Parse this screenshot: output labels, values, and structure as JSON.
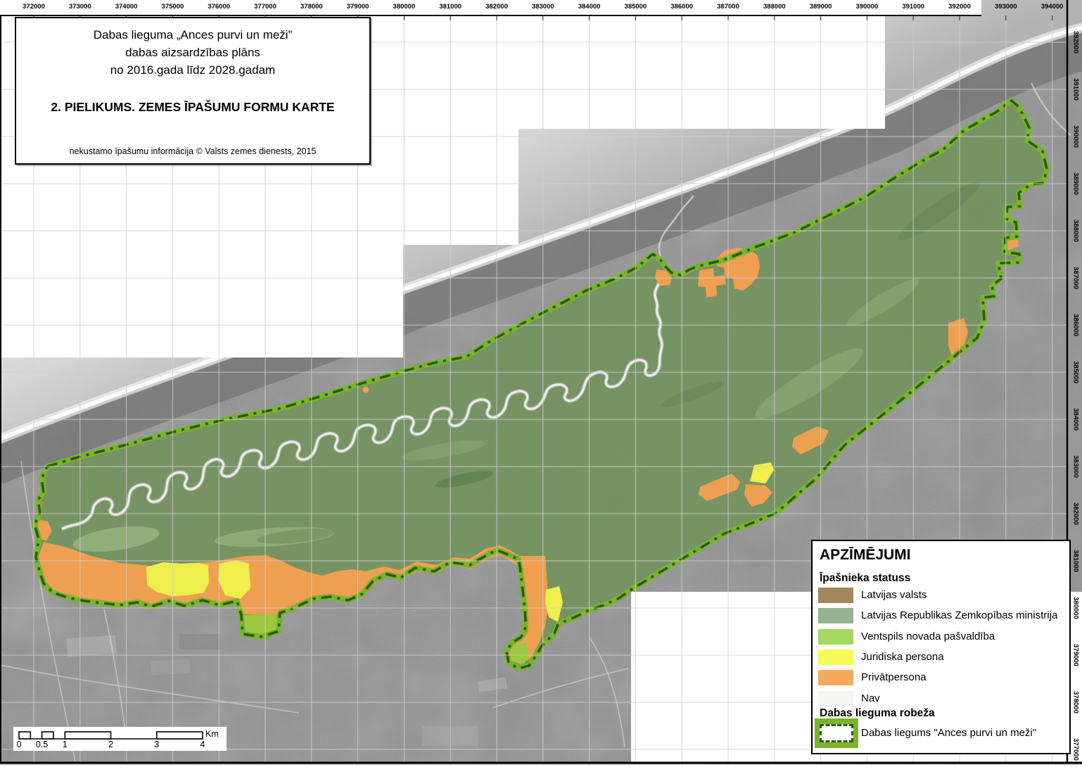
{
  "page": {
    "title_box": {
      "line1": "Dabas lieguma „Ances purvi un meži”",
      "line2": "dabas aizsardzības plāns",
      "line3": "no 2016.gada līdz 2028.gadam",
      "appendix": "2. PIELIKUMS. ZEMES ĪPAŠUMU FORMU KARTE",
      "credit": "nekustamo īpašumu informācija © Valsts zemes dienests, 2015"
    },
    "coordinates": {
      "top": [
        "372000",
        "373000",
        "374000",
        "375000",
        "376000",
        "377000",
        "378000",
        "379000",
        "380000",
        "381000",
        "382000",
        "383000",
        "384000",
        "385000",
        "386000",
        "387000",
        "388000",
        "389000",
        "390000",
        "391000",
        "392000",
        "393000",
        "394000"
      ],
      "right": [
        "392000",
        "391000",
        "390000",
        "389000",
        "388000",
        "387000",
        "386000",
        "385000",
        "384000",
        "383000",
        "382000",
        "381000",
        "380000",
        "379000",
        "378000",
        "377000"
      ]
    },
    "legend": {
      "title": "APZĪMĒJUMI",
      "owner_section_title": "Īpašnieka statuss",
      "items": [
        {
          "label": "Latvijas valsts",
          "color": "#a1875a"
        },
        {
          "label": "Latvijas Republikas Zemkopības ministrija",
          "color": "#97b291"
        },
        {
          "label": "Ventspils novada pašvaldība",
          "color": "#a6d763"
        },
        {
          "label": "Juridiska persona",
          "color": "#f8fa55"
        },
        {
          "label": "Privātpersona",
          "color": "#f9a95f"
        },
        {
          "label": "Nav",
          "color": "#f6f5f3"
        }
      ],
      "boundary_section_title": "Dabas lieguma robeža",
      "boundary_item": {
        "label": "Dabas liegums \"Ances purvi un meži\"",
        "outer_color": "#7ab32c",
        "dash_color": "#2e5c18"
      }
    },
    "scale_bar": {
      "tick_labels": [
        "0",
        "0.5",
        "1",
        "2",
        "3",
        "4"
      ],
      "unit": "Km"
    },
    "map_colors": {
      "reserve_fill": "#74935f",
      "reserve_border": "#79b42c",
      "reserve_dash": "#2d5a15",
      "private_parcel": "#ef9f50",
      "juridical_parcel": "#eeee4d",
      "municipal_parcel": "#9cc83f"
    }
  }
}
